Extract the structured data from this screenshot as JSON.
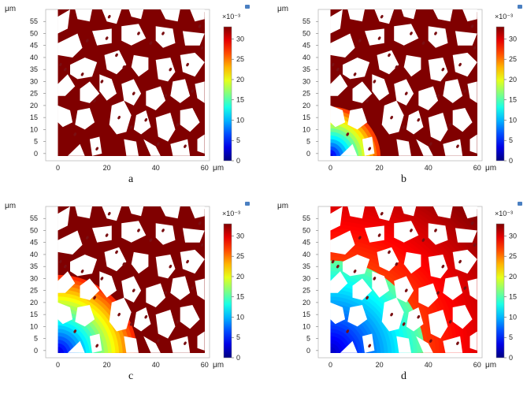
{
  "chart_data": [
    {
      "type": "heatmap",
      "label": "a",
      "x_axis": {
        "unit": "μm",
        "ticks": [
          "0",
          "20",
          "40",
          "60"
        ],
        "range": [
          -5,
          62
        ]
      },
      "y_axis": {
        "unit": "μm",
        "ticks": [
          "0",
          "5",
          "10",
          "15",
          "20",
          "25",
          "30",
          "35",
          "40",
          "45",
          "50",
          "55"
        ],
        "range": [
          -3,
          60
        ]
      },
      "colorbar": {
        "exponent": "×10⁻³",
        "ticks": [
          "0",
          "5",
          "10",
          "15",
          "20",
          "25",
          "30"
        ],
        "range": [
          0,
          33
        ],
        "colormap": "jet"
      },
      "front_extent_um": 1
    },
    {
      "type": "heatmap",
      "label": "b",
      "x_axis": {
        "unit": "μm",
        "ticks": [
          "0",
          "20",
          "40",
          "60"
        ],
        "range": [
          -5,
          62
        ]
      },
      "y_axis": {
        "unit": "μm",
        "ticks": [
          "0",
          "5",
          "10",
          "15",
          "20",
          "25",
          "30",
          "35",
          "40",
          "45",
          "50",
          "55"
        ],
        "range": [
          -3,
          60
        ]
      },
      "colorbar": {
        "exponent": "×10⁻³",
        "ticks": [
          "0",
          "5",
          "10",
          "15",
          "20",
          "25",
          "30"
        ],
        "range": [
          0,
          33
        ],
        "colormap": "jet"
      },
      "front_extent_um": 22
    },
    {
      "type": "heatmap",
      "label": "c",
      "x_axis": {
        "unit": "μm",
        "ticks": [
          "0",
          "20",
          "40",
          "60"
        ],
        "range": [
          -5,
          62
        ]
      },
      "y_axis": {
        "unit": "μm",
        "ticks": [
          "0",
          "5",
          "10",
          "15",
          "20",
          "25",
          "30",
          "35",
          "40",
          "45",
          "50",
          "55"
        ],
        "range": [
          -3,
          60
        ]
      },
      "colorbar": {
        "exponent": "×10⁻³",
        "ticks": [
          "0",
          "5",
          "10",
          "15",
          "20",
          "25",
          "30"
        ],
        "range": [
          0,
          33
        ],
        "colormap": "jet"
      },
      "front_extent_um": 34
    },
    {
      "type": "heatmap",
      "label": "d",
      "x_axis": {
        "unit": "μm",
        "ticks": [
          "0",
          "20",
          "40",
          "60"
        ],
        "range": [
          -5,
          62
        ]
      },
      "y_axis": {
        "unit": "μm",
        "ticks": [
          "0",
          "5",
          "10",
          "15",
          "20",
          "25",
          "30",
          "35",
          "40",
          "45",
          "50",
          "55"
        ],
        "range": [
          -3,
          60
        ]
      },
      "colorbar": {
        "exponent": "×10⁻³",
        "ticks": [
          "0",
          "5",
          "10",
          "15",
          "20",
          "25",
          "30"
        ],
        "range": [
          0,
          33
        ],
        "colormap": "jet"
      },
      "front_extent_um": 75
    }
  ]
}
